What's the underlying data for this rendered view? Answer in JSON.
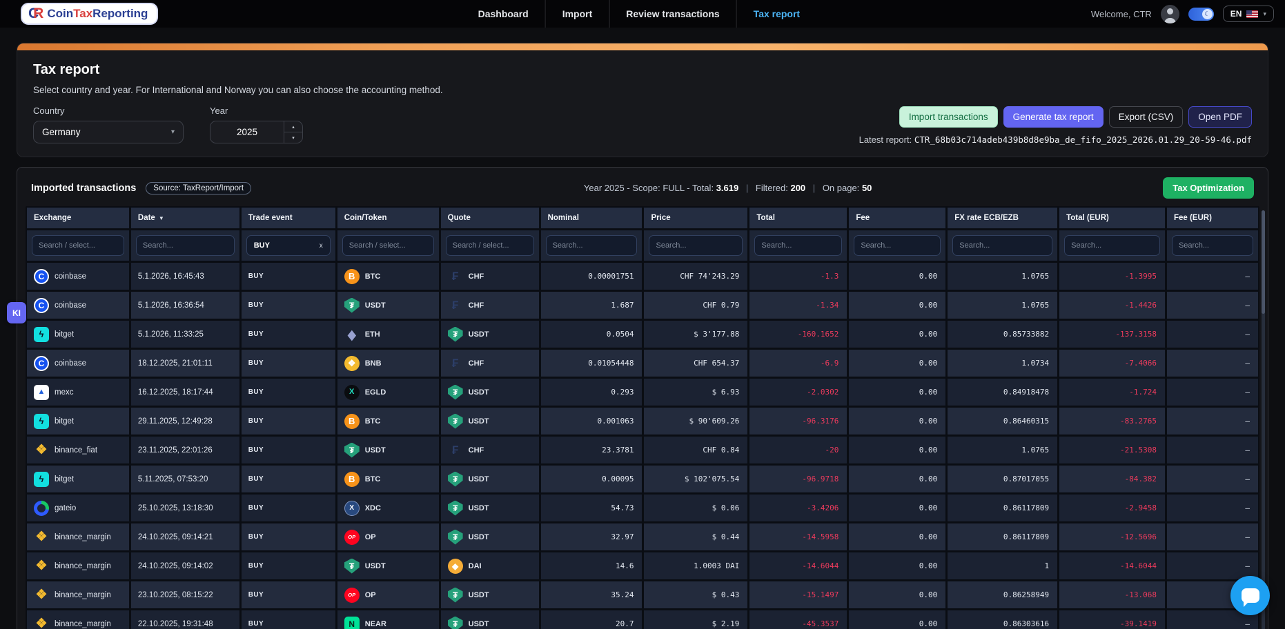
{
  "nav": {
    "logo": {
      "mark_c": "C",
      "mark_r": "R",
      "part1": "Coin",
      "part2": "Tax",
      "part3": "Reporting"
    },
    "items": [
      {
        "label": "Dashboard",
        "active": false
      },
      {
        "label": "Import",
        "active": false
      },
      {
        "label": "Review transactions",
        "active": false
      },
      {
        "label": "Tax report",
        "active": true
      }
    ],
    "welcome": "Welcome, CTR",
    "language": "EN"
  },
  "report_panel": {
    "title": "Tax report",
    "description": "Select country and year. For International and Norway you can also choose the accounting method.",
    "country_label": "Country",
    "country_value": "Germany",
    "year_label": "Year",
    "year_value": "2025",
    "buttons": {
      "import": "Import transactions",
      "generate": "Generate tax report",
      "export_csv": "Export (CSV)",
      "open_pdf": "Open PDF"
    },
    "latest_report_label": "Latest report:",
    "latest_report_file": "CTR_68b03c714adeb439b8d8e9ba_de_fifo_2025_2026.01.29_20-59-46.pdf"
  },
  "table_panel": {
    "title": "Imported transactions",
    "source_badge": "Source: TaxReport/Import",
    "summary": {
      "prefix": "Year 2025 - Scope: FULL - Total:",
      "total": "3.619",
      "pipe": "|",
      "filtered_label": "Filtered:",
      "filtered": "200",
      "on_page_label": "On page:",
      "on_page": "50"
    },
    "tax_optimization": "Tax Optimization",
    "columns": [
      {
        "label": "Exchange",
        "filter": "Search / select..."
      },
      {
        "label": "Date",
        "sort": "desc",
        "filter": "Search..."
      },
      {
        "label": "Trade event",
        "chip": "BUY"
      },
      {
        "label": "Coin/Token",
        "filter": "Search / select..."
      },
      {
        "label": "Quote",
        "filter": "Search / select..."
      },
      {
        "label": "Nominal",
        "filter": "Search..."
      },
      {
        "label": "Price",
        "filter": "Search..."
      },
      {
        "label": "Total",
        "filter": "Search..."
      },
      {
        "label": "Fee",
        "filter": "Search..."
      },
      {
        "label": "FX rate ECB/EZB",
        "filter": "Search..."
      },
      {
        "label": "Total (EUR)",
        "filter": "Search..."
      },
      {
        "label": "Fee (EUR)",
        "filter": "Search..."
      }
    ],
    "rows": [
      {
        "exchange": "coinbase",
        "exchange_icon": "coinbase",
        "date": "5.1.2026, 16:45:43",
        "event": "BUY",
        "coin": "BTC",
        "coin_icon": "btc",
        "quote": "CHF",
        "quote_icon": "chf",
        "nominal": "0.00001751",
        "price": "CHF 74'243.29",
        "total": "-1.3",
        "fee": "0.00",
        "fx_rate": "1.0765",
        "total_eur": "-1.3995",
        "fee_eur": "–"
      },
      {
        "exchange": "coinbase",
        "exchange_icon": "coinbase",
        "date": "5.1.2026, 16:36:54",
        "event": "BUY",
        "coin": "USDT",
        "coin_icon": "usdt",
        "quote": "CHF",
        "quote_icon": "chf",
        "nominal": "1.687",
        "price": "CHF 0.79",
        "total": "-1.34",
        "fee": "0.00",
        "fx_rate": "1.0765",
        "total_eur": "-1.4426",
        "fee_eur": "–"
      },
      {
        "exchange": "bitget",
        "exchange_icon": "bitget",
        "date": "5.1.2026, 11:33:25",
        "event": "BUY",
        "coin": "ETH",
        "coin_icon": "eth",
        "quote": "USDT",
        "quote_icon": "usdt",
        "nominal": "0.0504",
        "price": "$ 3'177.88",
        "total": "-160.1652",
        "fee": "0.00",
        "fx_rate": "0.85733882",
        "total_eur": "-137.3158",
        "fee_eur": "–"
      },
      {
        "exchange": "coinbase",
        "exchange_icon": "coinbase",
        "date": "18.12.2025, 21:01:11",
        "event": "BUY",
        "coin": "BNB",
        "coin_icon": "bnb",
        "quote": "CHF",
        "quote_icon": "chf",
        "nominal": "0.01054448",
        "price": "CHF 654.37",
        "total": "-6.9",
        "fee": "0.00",
        "fx_rate": "1.0734",
        "total_eur": "-7.4066",
        "fee_eur": "–"
      },
      {
        "exchange": "mexc",
        "exchange_icon": "mexc",
        "date": "16.12.2025, 18:17:44",
        "event": "BUY",
        "coin": "EGLD",
        "coin_icon": "egld",
        "quote": "USDT",
        "quote_icon": "usdt",
        "nominal": "0.293",
        "price": "$ 6.93",
        "total": "-2.0302",
        "fee": "0.00",
        "fx_rate": "0.84918478",
        "total_eur": "-1.724",
        "fee_eur": "–"
      },
      {
        "exchange": "bitget",
        "exchange_icon": "bitget",
        "date": "29.11.2025, 12:49:28",
        "event": "BUY",
        "coin": "BTC",
        "coin_icon": "btc",
        "quote": "USDT",
        "quote_icon": "usdt",
        "nominal": "0.001063",
        "price": "$ 90'609.26",
        "total": "-96.3176",
        "fee": "0.00",
        "fx_rate": "0.86460315",
        "total_eur": "-83.2765",
        "fee_eur": "–"
      },
      {
        "exchange": "binance_fiat",
        "exchange_icon": "binance",
        "date": "23.11.2025, 22:01:26",
        "event": "BUY",
        "coin": "USDT",
        "coin_icon": "usdt",
        "quote": "CHF",
        "quote_icon": "chf",
        "nominal": "23.3781",
        "price": "CHF 0.84",
        "total": "-20",
        "fee": "0.00",
        "fx_rate": "1.0765",
        "total_eur": "-21.5308",
        "fee_eur": "–"
      },
      {
        "exchange": "bitget",
        "exchange_icon": "bitget",
        "date": "5.11.2025, 07:53:20",
        "event": "BUY",
        "coin": "BTC",
        "coin_icon": "btc",
        "quote": "USDT",
        "quote_icon": "usdt",
        "nominal": "0.00095",
        "price": "$ 102'075.54",
        "total": "-96.9718",
        "fee": "0.00",
        "fx_rate": "0.87017055",
        "total_eur": "-84.382",
        "fee_eur": "–"
      },
      {
        "exchange": "gateio",
        "exchange_icon": "gateio",
        "date": "25.10.2025, 13:18:30",
        "event": "BUY",
        "coin": "XDC",
        "coin_icon": "xdc",
        "quote": "USDT",
        "quote_icon": "usdt",
        "nominal": "54.73",
        "price": "$ 0.06",
        "total": "-3.4206",
        "fee": "0.00",
        "fx_rate": "0.86117809",
        "total_eur": "-2.9458",
        "fee_eur": "–"
      },
      {
        "exchange": "binance_margin",
        "exchange_icon": "binance",
        "date": "24.10.2025, 09:14:21",
        "event": "BUY",
        "coin": "OP",
        "coin_icon": "op",
        "quote": "USDT",
        "quote_icon": "usdt",
        "nominal": "32.97",
        "price": "$ 0.44",
        "total": "-14.5958",
        "fee": "0.00",
        "fx_rate": "0.86117809",
        "total_eur": "-12.5696",
        "fee_eur": "–"
      },
      {
        "exchange": "binance_margin",
        "exchange_icon": "binance",
        "date": "24.10.2025, 09:14:02",
        "event": "BUY",
        "coin": "USDT",
        "coin_icon": "usdt",
        "quote": "DAI",
        "quote_icon": "dai",
        "nominal": "14.6",
        "price": "1.0003 DAI",
        "total": "-14.6044",
        "fee": "0.00",
        "fx_rate": "1",
        "total_eur": "-14.6044",
        "fee_eur": "–"
      },
      {
        "exchange": "binance_margin",
        "exchange_icon": "binance",
        "date": "23.10.2025, 08:15:22",
        "event": "BUY",
        "coin": "OP",
        "coin_icon": "op",
        "quote": "USDT",
        "quote_icon": "usdt",
        "nominal": "35.24",
        "price": "$ 0.43",
        "total": "-15.1497",
        "fee": "0.00",
        "fx_rate": "0.86258949",
        "total_eur": "-13.068",
        "fee_eur": "–"
      },
      {
        "exchange": "binance_margin",
        "exchange_icon": "binance",
        "date": "22.10.2025, 19:31:48",
        "event": "BUY",
        "coin": "NEAR",
        "coin_icon": "near",
        "quote": "USDT",
        "quote_icon": "usdt",
        "nominal": "20.7",
        "price": "$ 2.19",
        "total": "-45.3537",
        "fee": "0.00",
        "fx_rate": "0.86303616",
        "total_eur": "-39.1419",
        "fee_eur": "–"
      }
    ]
  },
  "floating": {
    "ki_badge": "KI"
  },
  "icons": {
    "coinbase": "C",
    "bitget": "ϟ",
    "mexc": "▲",
    "binance": "❖",
    "gateio": "",
    "btc": "B",
    "usdt": "₮",
    "eth": "◆",
    "bnb": "❖",
    "egld": "X",
    "xdc": "X",
    "op": "OP",
    "dai": "◆",
    "near": "N",
    "chf": "₣",
    "sort_desc": "▼",
    "chevron_down": "▾",
    "clear": "x",
    "moon": "☾",
    "stepper_up": "▴",
    "stepper_down": "▾"
  },
  "colors": {
    "nav_active": "#4cb4f5",
    "orange_bar_start": "#d9772f",
    "orange_bar_end": "#f7b26b",
    "negative": "#ee3b5d",
    "import_button_bg": "#c9f2db",
    "generate_button_bg": "#6365f1",
    "open_pdf_border": "#4649c9",
    "tax_optimization_bg": "#1eb163",
    "ki_badge_bg": "#6466f1",
    "chat_bubble_bg": "#1da0f2"
  }
}
